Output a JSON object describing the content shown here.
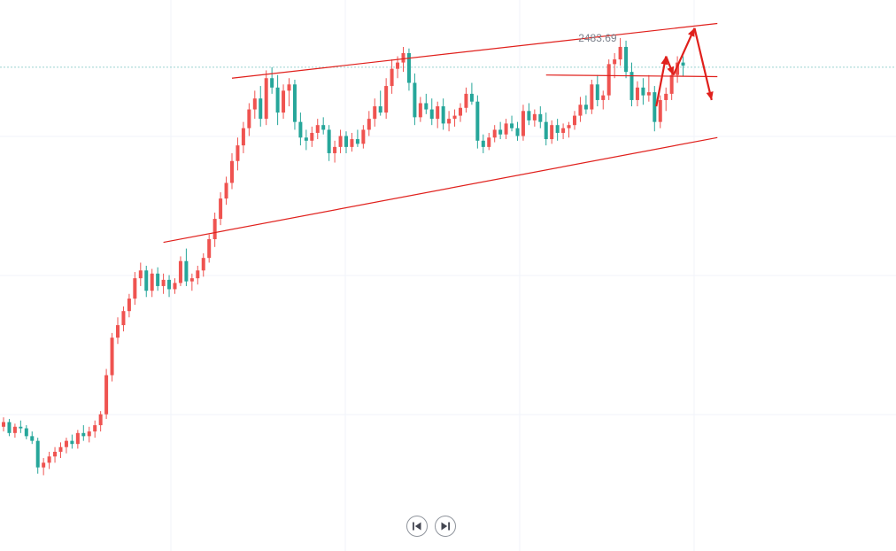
{
  "chart_data": {
    "type": "candlestick",
    "high_label": "2483.69",
    "grid": true,
    "colors": {
      "up": "#ef5350",
      "down": "#26a69a",
      "annotation": "#e0201c",
      "grid": "#f0f3fa",
      "price_line": "#9ad3cf"
    },
    "candles": [
      [
        2235,
        2241,
        2232,
        2238
      ],
      [
        2238,
        2240,
        2229,
        2231
      ],
      [
        2231,
        2237,
        2228,
        2235
      ],
      [
        2235,
        2239,
        2231,
        2234
      ],
      [
        2234,
        2236,
        2227,
        2229
      ],
      [
        2229,
        2232,
        2224,
        2226
      ],
      [
        2226,
        2228,
        2205,
        2209
      ],
      [
        2209,
        2215,
        2204,
        2212
      ],
      [
        2212,
        2219,
        2208,
        2216
      ],
      [
        2216,
        2222,
        2212,
        2219
      ],
      [
        2219,
        2225,
        2215,
        2222
      ],
      [
        2222,
        2228,
        2218,
        2226
      ],
      [
        2226,
        2230,
        2221,
        2224
      ],
      [
        2224,
        2233,
        2221,
        2231
      ],
      [
        2231,
        2236,
        2226,
        2229
      ],
      [
        2229,
        2235,
        2225,
        2232
      ],
      [
        2232,
        2239,
        2228,
        2236
      ],
      [
        2236,
        2245,
        2232,
        2243
      ],
      [
        2243,
        2272,
        2240,
        2268
      ],
      [
        2268,
        2295,
        2264,
        2292
      ],
      [
        2292,
        2305,
        2288,
        2300
      ],
      [
        2300,
        2312,
        2296,
        2309
      ],
      [
        2309,
        2320,
        2305,
        2317
      ],
      [
        2317,
        2334,
        2313,
        2330
      ],
      [
        2330,
        2340,
        2325,
        2335
      ],
      [
        2335,
        2338,
        2318,
        2322
      ],
      [
        2322,
        2336,
        2318,
        2333
      ],
      [
        2333,
        2337,
        2322,
        2325
      ],
      [
        2325,
        2333,
        2320,
        2329
      ],
      [
        2329,
        2332,
        2318,
        2323
      ],
      [
        2323,
        2330,
        2320,
        2327
      ],
      [
        2327,
        2344,
        2325,
        2341
      ],
      [
        2341,
        2349,
        2325,
        2328
      ],
      [
        2328,
        2333,
        2322,
        2330
      ],
      [
        2330,
        2338,
        2326,
        2335
      ],
      [
        2335,
        2346,
        2331,
        2343
      ],
      [
        2343,
        2358,
        2340,
        2355
      ],
      [
        2355,
        2372,
        2350,
        2368
      ],
      [
        2368,
        2385,
        2364,
        2381
      ],
      [
        2381,
        2395,
        2377,
        2391
      ],
      [
        2391,
        2410,
        2387,
        2405
      ],
      [
        2405,
        2420,
        2399,
        2415
      ],
      [
        2415,
        2430,
        2410,
        2426
      ],
      [
        2426,
        2442,
        2421,
        2438
      ],
      [
        2438,
        2450,
        2432,
        2445
      ],
      [
        2445,
        2453,
        2427,
        2432
      ],
      [
        2432,
        2463,
        2428,
        2458
      ],
      [
        2458,
        2465,
        2448,
        2452
      ],
      [
        2452,
        2460,
        2428,
        2436
      ],
      [
        2436,
        2454,
        2432,
        2450
      ],
      [
        2450,
        2458,
        2440,
        2454
      ],
      [
        2454,
        2457,
        2425,
        2430
      ],
      [
        2430,
        2436,
        2415,
        2420
      ],
      [
        2420,
        2425,
        2412,
        2418
      ],
      [
        2418,
        2427,
        2414,
        2423
      ],
      [
        2423,
        2432,
        2419,
        2428
      ],
      [
        2428,
        2433,
        2422,
        2425
      ],
      [
        2425,
        2428,
        2405,
        2410
      ],
      [
        2410,
        2418,
        2404,
        2414
      ],
      [
        2414,
        2425,
        2410,
        2421
      ],
      [
        2421,
        2424,
        2410,
        2414
      ],
      [
        2414,
        2423,
        2411,
        2419
      ],
      [
        2419,
        2425,
        2414,
        2416
      ],
      [
        2416,
        2428,
        2413,
        2425
      ],
      [
        2425,
        2437,
        2421,
        2432
      ],
      [
        2432,
        2445,
        2427,
        2440
      ],
      [
        2440,
        2450,
        2434,
        2436
      ],
      [
        2436,
        2458,
        2432,
        2453
      ],
      [
        2453,
        2470,
        2448,
        2464
      ],
      [
        2464,
        2472,
        2458,
        2468
      ],
      [
        2468,
        2478,
        2462,
        2474
      ],
      [
        2474,
        2477,
        2450,
        2455
      ],
      [
        2455,
        2461,
        2428,
        2433
      ],
      [
        2433,
        2446,
        2430,
        2442
      ],
      [
        2442,
        2448,
        2435,
        2438
      ],
      [
        2438,
        2445,
        2428,
        2432
      ],
      [
        2432,
        2443,
        2426,
        2440
      ],
      [
        2440,
        2445,
        2425,
        2429
      ],
      [
        2429,
        2437,
        2424,
        2432
      ],
      [
        2432,
        2438,
        2427,
        2434
      ],
      [
        2434,
        2442,
        2430,
        2439
      ],
      [
        2439,
        2452,
        2436,
        2448
      ],
      [
        2448,
        2455,
        2441,
        2443
      ],
      [
        2443,
        2447,
        2413,
        2418
      ],
      [
        2418,
        2422,
        2410,
        2414
      ],
      [
        2414,
        2423,
        2412,
        2420
      ],
      [
        2420,
        2428,
        2417,
        2425
      ],
      [
        2425,
        2430,
        2419,
        2422
      ],
      [
        2422,
        2432,
        2419,
        2429
      ],
      [
        2429,
        2434,
        2424,
        2426
      ],
      [
        2426,
        2430,
        2418,
        2421
      ],
      [
        2421,
        2441,
        2418,
        2437
      ],
      [
        2437,
        2442,
        2428,
        2431
      ],
      [
        2431,
        2438,
        2427,
        2435
      ],
      [
        2435,
        2440,
        2426,
        2430
      ],
      [
        2430,
        2436,
        2415,
        2419
      ],
      [
        2419,
        2431,
        2416,
        2428
      ],
      [
        2428,
        2432,
        2418,
        2423
      ],
      [
        2423,
        2429,
        2419,
        2426
      ],
      [
        2426,
        2430,
        2420,
        2428
      ],
      [
        2428,
        2437,
        2425,
        2434
      ],
      [
        2434,
        2446,
        2430,
        2441
      ],
      [
        2441,
        2447,
        2435,
        2438
      ],
      [
        2438,
        2457,
        2435,
        2454
      ],
      [
        2454,
        2460,
        2440,
        2444
      ],
      [
        2444,
        2450,
        2438,
        2447
      ],
      [
        2447,
        2470,
        2444,
        2467
      ],
      [
        2467,
        2474,
        2458,
        2470
      ],
      [
        2470,
        2483.69,
        2466,
        2478
      ],
      [
        2478,
        2482,
        2458,
        2462
      ],
      [
        2462,
        2468,
        2440,
        2444
      ],
      [
        2444,
        2456,
        2440,
        2452
      ],
      [
        2452,
        2458,
        2441,
        2447
      ],
      [
        2447,
        2460,
        2443,
        2449
      ],
      [
        2449,
        2453,
        2424,
        2430
      ],
      [
        2430,
        2447,
        2426,
        2444
      ],
      [
        2444,
        2452,
        2437,
        2448
      ],
      [
        2448,
        2463,
        2444,
        2460
      ],
      [
        2460,
        2472,
        2455,
        2468
      ],
      [
        2468,
        2472,
        2459,
        2466
      ]
    ],
    "channel_upper": [
      [
        40,
        2458
      ],
      [
        125,
        2493
      ]
    ],
    "channel_lower": [
      [
        28,
        2353
      ],
      [
        125,
        2420
      ]
    ],
    "horizontal_level": [
      [
        95,
        2460
      ],
      [
        125,
        2459
      ]
    ],
    "price_line": 2465,
    "projection": [
      [
        114.3,
        2440
      ],
      [
        116.0,
        2472
      ],
      [
        117.3,
        2460
      ],
      [
        121.0,
        2490
      ],
      [
        124.0,
        2444
      ]
    ],
    "y_range": [
      2185,
      2508
    ]
  },
  "navigation": {
    "prev_icon": "skip-back-icon",
    "next_icon": "skip-forward-icon"
  }
}
